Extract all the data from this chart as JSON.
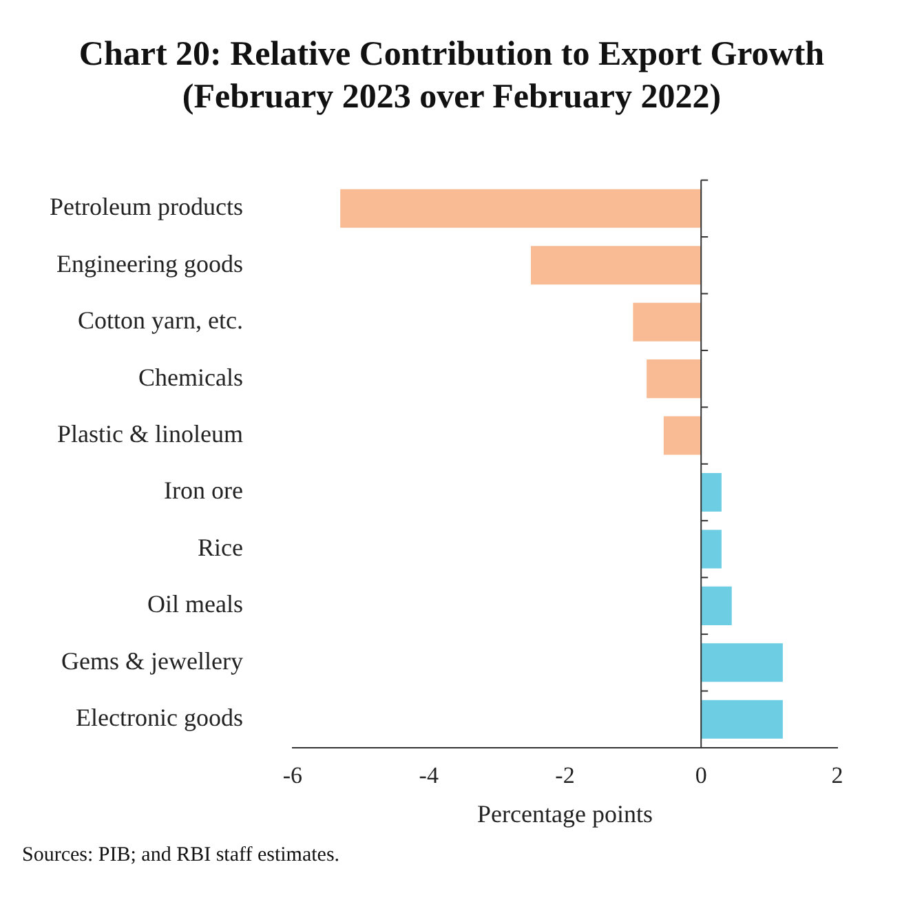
{
  "chart_data": {
    "type": "bar",
    "orientation": "horizontal",
    "title": "Chart 20: Relative Contribution to Export Growth (February 2023 over February 2022)",
    "xlabel": "Percentage points",
    "categories": [
      "Petroleum products",
      "Engineering goods",
      "Cotton yarn, etc.",
      "Chemicals",
      "Plastic & linoleum",
      "Iron ore",
      "Rice",
      "Oil meals",
      "Gems & jewellery",
      "Electronic goods"
    ],
    "values": [
      -5.3,
      -2.5,
      -1.0,
      -0.8,
      -0.55,
      0.3,
      0.3,
      0.45,
      1.2,
      1.2
    ],
    "colors": [
      "#f8bb94",
      "#f8bb94",
      "#f8bb94",
      "#f8bb94",
      "#f8bb94",
      "#6dcde3",
      "#6dcde3",
      "#6dcde3",
      "#6dcde3",
      "#6dcde3"
    ],
    "xlim": [
      -6,
      2
    ],
    "xticks": [
      -6,
      -4,
      -2,
      0,
      2
    ],
    "legend": false,
    "ref_lines": [
      {
        "axis": "x",
        "value": 0,
        "color": "#333333"
      }
    ],
    "annotations": [
      "Sources: PIB; and RBI staff estimates."
    ]
  }
}
